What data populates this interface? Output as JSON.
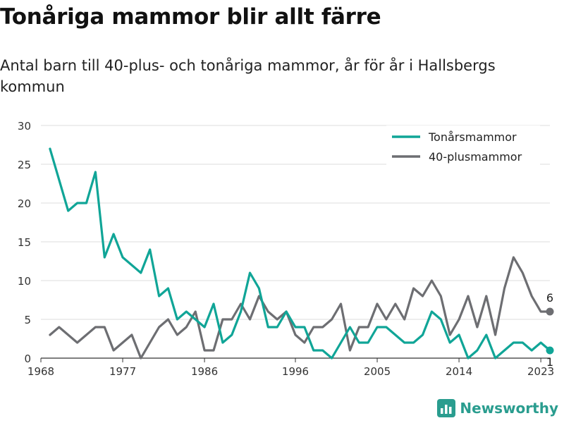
{
  "header": {
    "title": "Tonåriga mammor blir allt färre",
    "subtitle": "Antal barn till 40-plus- och tonåriga mammor, år för år i Hallsbergs kommun"
  },
  "brand": {
    "name": "Newsworthy",
    "color": "#2a9d8f"
  },
  "chart_data": {
    "type": "line",
    "title": "Tonåriga mammor blir allt färre",
    "subtitle": "Antal barn till 40-plus- och tonåriga mammor, år för år i Hallsbergs kommun",
    "xlabel": "",
    "ylabel": "",
    "ylim": [
      0,
      30
    ],
    "yticks": [
      0,
      5,
      10,
      15,
      20,
      25,
      30
    ],
    "xlim": [
      1968,
      2024
    ],
    "xticks": [
      1968,
      1977,
      1986,
      1996,
      2005,
      2014,
      2023
    ],
    "grid": true,
    "legend_position": "top-right",
    "x": [
      1969,
      1970,
      1971,
      1972,
      1973,
      1974,
      1975,
      1976,
      1977,
      1978,
      1979,
      1980,
      1981,
      1982,
      1983,
      1984,
      1985,
      1986,
      1987,
      1988,
      1989,
      1990,
      1991,
      1992,
      1993,
      1994,
      1995,
      1996,
      1997,
      1998,
      1999,
      2000,
      2001,
      2002,
      2003,
      2004,
      2005,
      2006,
      2007,
      2008,
      2009,
      2010,
      2011,
      2012,
      2013,
      2014,
      2015,
      2016,
      2017,
      2018,
      2019,
      2020,
      2021,
      2022,
      2023,
      2024
    ],
    "series": [
      {
        "name": "Tonårsmammor",
        "color": "#10a597",
        "values": [
          27,
          23,
          19,
          20,
          20,
          24,
          13,
          16,
          13,
          12,
          11,
          14,
          8,
          9,
          5,
          6,
          5,
          4,
          7,
          2,
          3,
          6,
          11,
          9,
          4,
          4,
          6,
          4,
          4,
          1,
          1,
          0,
          2,
          4,
          2,
          2,
          4,
          4,
          3,
          2,
          2,
          3,
          6,
          5,
          2,
          3,
          0,
          1,
          3,
          0,
          1,
          2,
          2,
          1,
          2,
          1
        ],
        "end_label": "1"
      },
      {
        "name": "40-plusmammor",
        "color": "#6d6e72",
        "values": [
          3,
          4,
          3,
          2,
          3,
          4,
          4,
          1,
          2,
          3,
          0,
          2,
          4,
          5,
          3,
          4,
          6,
          1,
          1,
          5,
          5,
          7,
          5,
          8,
          6,
          5,
          6,
          3,
          2,
          4,
          4,
          5,
          7,
          1,
          4,
          4,
          7,
          5,
          7,
          5,
          9,
          8,
          10,
          8,
          3,
          5,
          8,
          4,
          8,
          3,
          9,
          13,
          11,
          8,
          6,
          6
        ],
        "end_label": "6"
      }
    ]
  }
}
